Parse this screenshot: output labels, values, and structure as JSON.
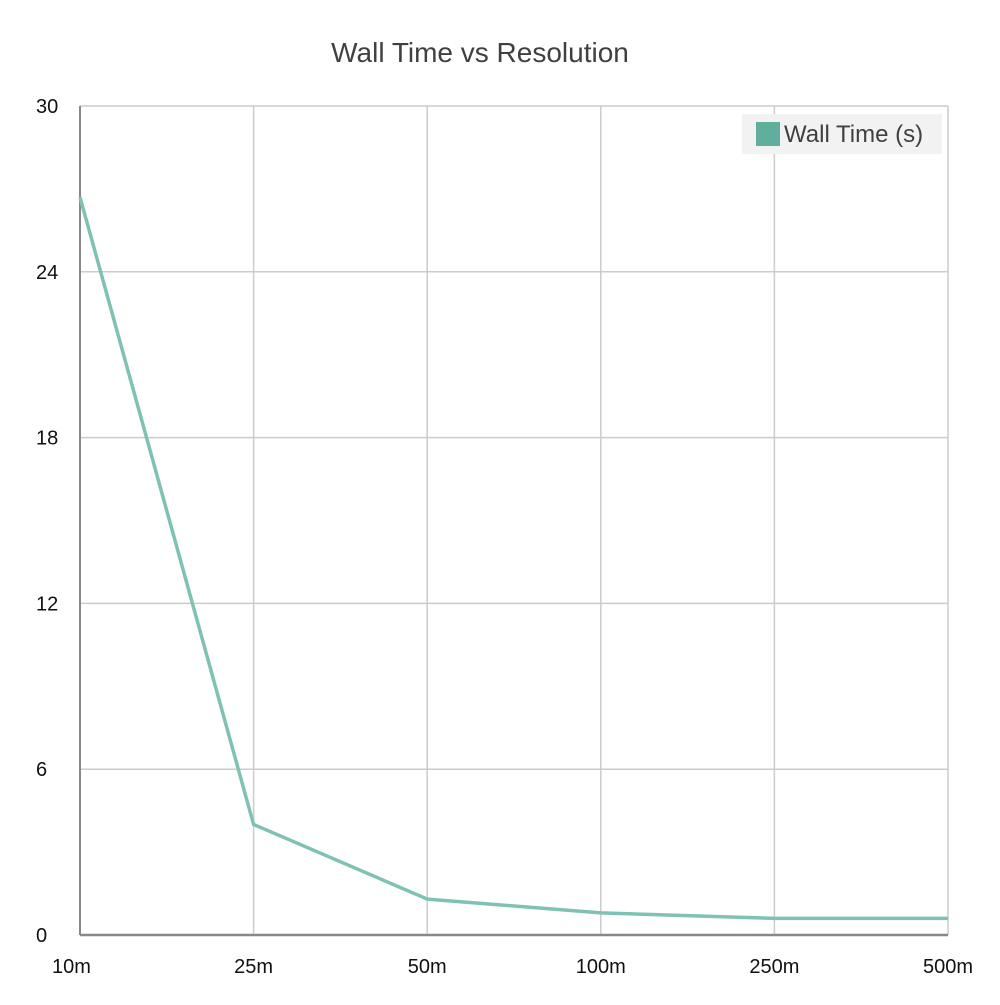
{
  "chart_data": {
    "type": "line",
    "title": "Wall Time vs Resolution",
    "xlabel": "",
    "ylabel": "",
    "categories": [
      "10m",
      "25m",
      "50m",
      "100m",
      "250m",
      "500m"
    ],
    "series": [
      {
        "name": "Wall Time (s)",
        "values": [
          26.7,
          4.0,
          1.3,
          0.8,
          0.6,
          0.6
        ],
        "color": "#7fc2b3"
      }
    ],
    "ylim": [
      0,
      30
    ],
    "yticks": [
      "0",
      "6",
      "12",
      "18",
      "24",
      "30"
    ],
    "grid": true,
    "legend_position": "top-right",
    "legend_swatch_color": "#5fae9e",
    "grid_color": "#cccccc",
    "axis_color": "#888888"
  }
}
